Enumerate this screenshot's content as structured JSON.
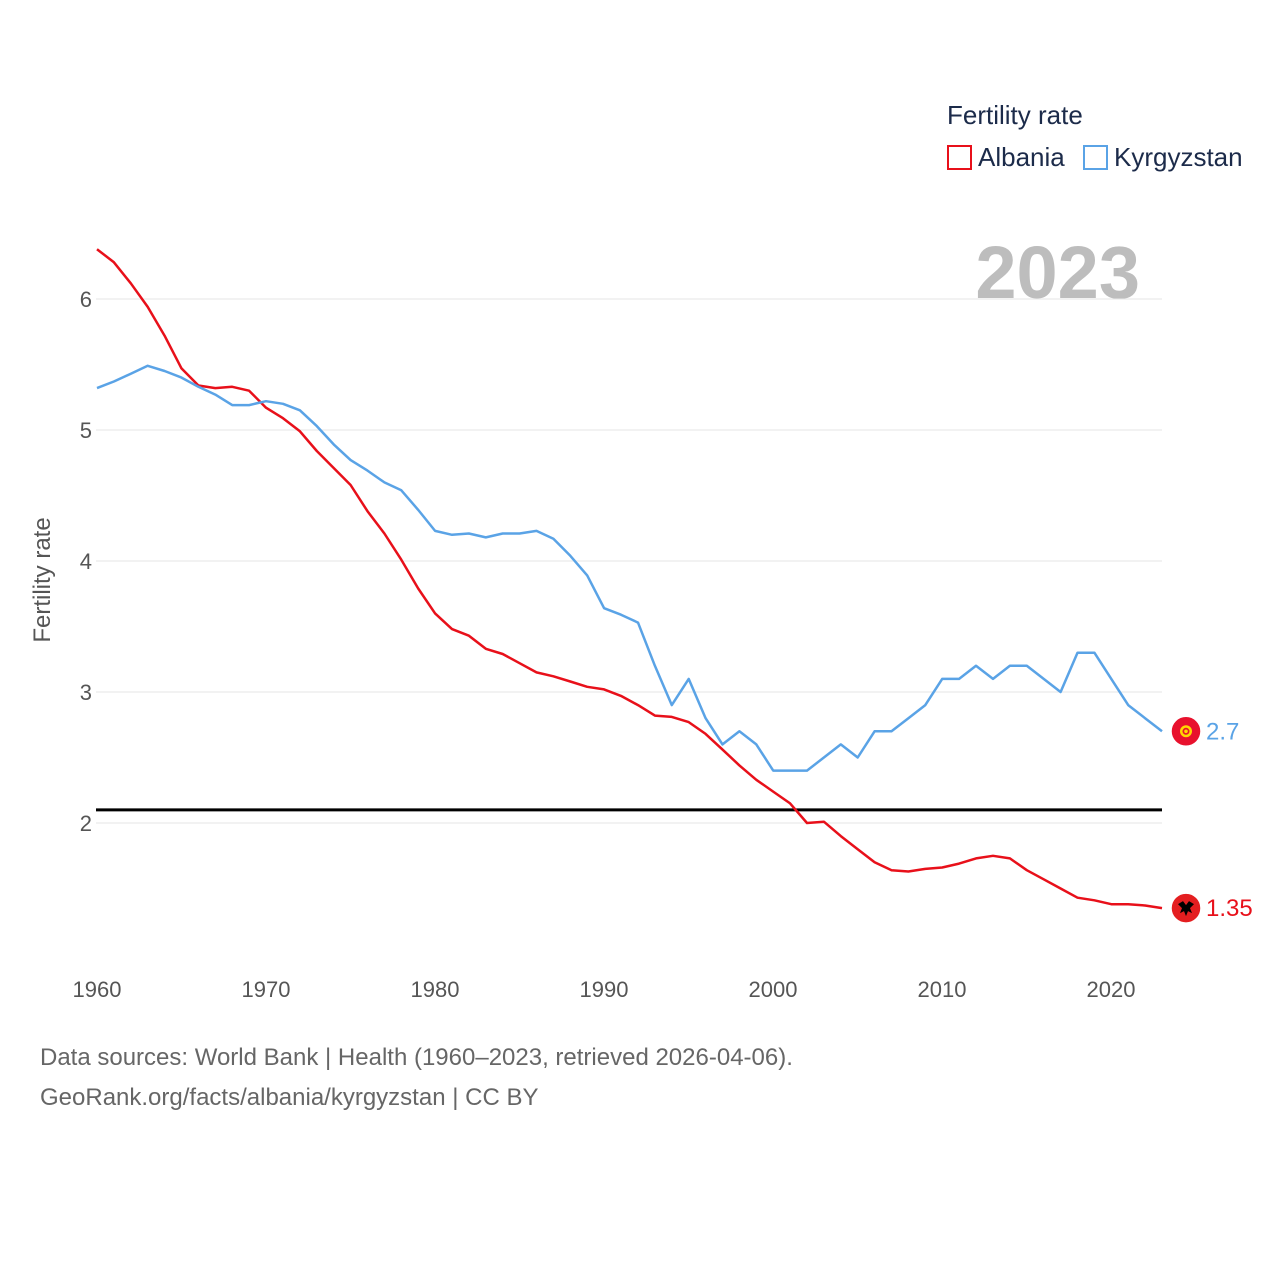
{
  "chart_data": {
    "type": "line",
    "year_label": "2023",
    "legend": {
      "title": "Fertility rate",
      "items": [
        "Albania",
        "Kyrgyzstan"
      ],
      "placement": "top-right"
    },
    "ylabel": "Fertility rate",
    "xlabel": "",
    "xlim": [
      1960,
      2023
    ],
    "ylim": [
      1.0,
      6.5
    ],
    "x_ticks": [
      "1960",
      "1970",
      "1980",
      "1990",
      "2000",
      "2010",
      "2020"
    ],
    "y_ticks": [
      "2",
      "3",
      "4",
      "5",
      "6"
    ],
    "reference_line": {
      "y": 2.1,
      "color": "#000000"
    },
    "x": [
      1960,
      1961,
      1962,
      1963,
      1964,
      1965,
      1966,
      1967,
      1968,
      1969,
      1970,
      1971,
      1972,
      1973,
      1974,
      1975,
      1976,
      1977,
      1978,
      1979,
      1980,
      1981,
      1982,
      1983,
      1984,
      1985,
      1986,
      1987,
      1988,
      1989,
      1990,
      1991,
      1992,
      1993,
      1994,
      1995,
      1996,
      1997,
      1998,
      1999,
      2000,
      2001,
      2002,
      2003,
      2004,
      2005,
      2006,
      2007,
      2008,
      2009,
      2010,
      2011,
      2012,
      2013,
      2014,
      2015,
      2016,
      2017,
      2018,
      2019,
      2020,
      2021,
      2022,
      2023
    ],
    "series": [
      {
        "name": "Albania",
        "color": "#e8101a",
        "end_label": "1.35",
        "values": [
          6.38,
          6.28,
          6.12,
          5.94,
          5.72,
          5.47,
          5.34,
          5.32,
          5.33,
          5.3,
          5.17,
          5.09,
          4.99,
          4.84,
          4.71,
          4.58,
          4.38,
          4.21,
          4.01,
          3.79,
          3.6,
          3.48,
          3.43,
          3.33,
          3.29,
          3.22,
          3.15,
          3.12,
          3.08,
          3.04,
          3.02,
          2.97,
          2.9,
          2.82,
          2.81,
          2.77,
          2.68,
          2.56,
          2.44,
          2.33,
          2.24,
          2.15,
          2.0,
          2.01,
          1.9,
          1.8,
          1.7,
          1.64,
          1.63,
          1.65,
          1.66,
          1.69,
          1.73,
          1.75,
          1.73,
          1.64,
          1.57,
          1.5,
          1.43,
          1.41,
          1.38,
          1.38,
          1.37,
          1.35
        ]
      },
      {
        "name": "Kyrgyzstan",
        "color": "#5aa3e6",
        "end_label": "2.7",
        "values": [
          5.32,
          5.37,
          5.43,
          5.49,
          5.45,
          5.4,
          5.33,
          5.27,
          5.19,
          5.19,
          5.22,
          5.2,
          5.15,
          5.03,
          4.89,
          4.77,
          4.69,
          4.6,
          4.54,
          4.39,
          4.23,
          4.2,
          4.21,
          4.18,
          4.21,
          4.21,
          4.23,
          4.17,
          4.04,
          3.89,
          3.64,
          3.59,
          3.53,
          3.2,
          2.9,
          3.1,
          2.8,
          2.6,
          2.7,
          2.6,
          2.4,
          2.4,
          2.4,
          2.5,
          2.6,
          2.5,
          2.7,
          2.7,
          2.8,
          2.9,
          3.1,
          3.1,
          3.2,
          3.1,
          3.2,
          3.2,
          3.1,
          3.0,
          3.3,
          3.3,
          3.1,
          2.9,
          2.8,
          2.7
        ]
      }
    ]
  },
  "footer": {
    "line1": "Data sources: World Bank | Health (1960–2023, retrieved 2026-04-06).",
    "line2": "GeoRank.org/facts/albania/kyrgyzstan | CC BY"
  }
}
